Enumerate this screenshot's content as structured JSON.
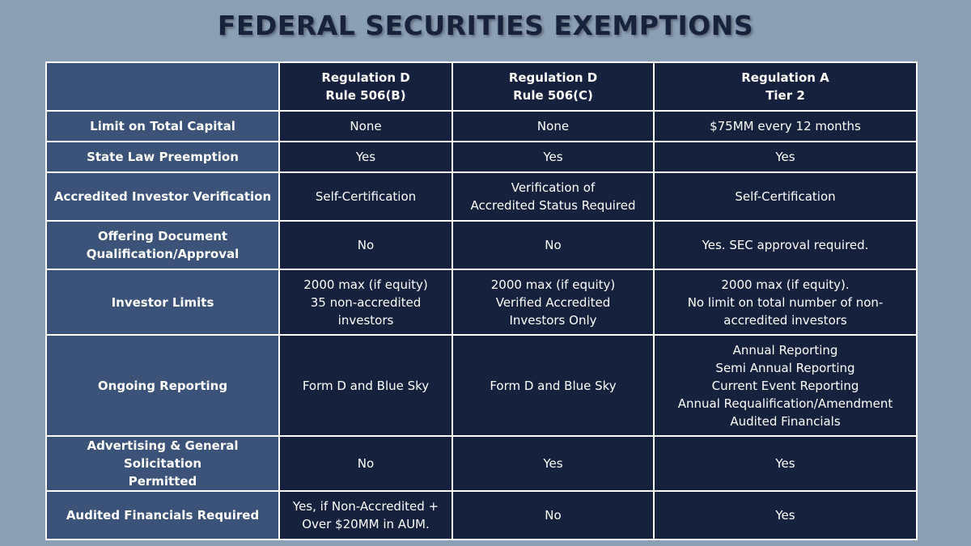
{
  "title": "FEDERAL SECURITIES EXEMPTIONS",
  "table": {
    "header": [
      [
        "Regulation D",
        "Rule 506(B)"
      ],
      [
        "Regulation D",
        "Rule 506(C)"
      ],
      [
        "Regulation A",
        "Tier 2"
      ]
    ],
    "rows": [
      {
        "label": [
          "Limit on Total Capital"
        ],
        "cells": [
          [
            "None"
          ],
          [
            "None"
          ],
          [
            "$75MM every 12 months"
          ]
        ]
      },
      {
        "label": [
          "State Law Preemption"
        ],
        "cells": [
          [
            "Yes"
          ],
          [
            "Yes"
          ],
          [
            "Yes"
          ]
        ]
      },
      {
        "label": [
          "Accredited Investor Verification"
        ],
        "cells": [
          [
            "Self-Certification"
          ],
          [
            "Verification of",
            "Accredited Status Required"
          ],
          [
            "Self-Certification"
          ]
        ]
      },
      {
        "label": [
          "Offering Document",
          "Qualification/Approval"
        ],
        "cells": [
          [
            "No"
          ],
          [
            "No"
          ],
          [
            "Yes. SEC approval required."
          ]
        ]
      },
      {
        "label": [
          "Investor Limits"
        ],
        "cells": [
          [
            "2000 max (if equity)",
            "35 non-accredited",
            "investors"
          ],
          [
            "2000 max (if equity)",
            "Verified Accredited",
            "Investors Only"
          ],
          [
            "2000 max (if equity).",
            "No limit on total number of non-",
            "accredited investors"
          ]
        ]
      },
      {
        "label": [
          "Ongoing Reporting"
        ],
        "cells": [
          [
            "Form D and Blue Sky"
          ],
          [
            "Form D and Blue Sky"
          ],
          [
            "Annual Reporting",
            "Semi Annual Reporting",
            "Current Event Reporting",
            "Annual Requalification/Amendment",
            "Audited Financials"
          ]
        ]
      },
      {
        "label": [
          "Advertising & General Solicitation",
          "Permitted"
        ],
        "cells": [
          [
            "No"
          ],
          [
            "Yes"
          ],
          [
            "Yes"
          ]
        ]
      },
      {
        "label": [
          "Audited Financials Required"
        ],
        "cells": [
          [
            "Yes, if Non-Accredited +",
            "Over $20MM in AUM."
          ],
          [
            "No"
          ],
          [
            "Yes"
          ]
        ]
      }
    ]
  }
}
